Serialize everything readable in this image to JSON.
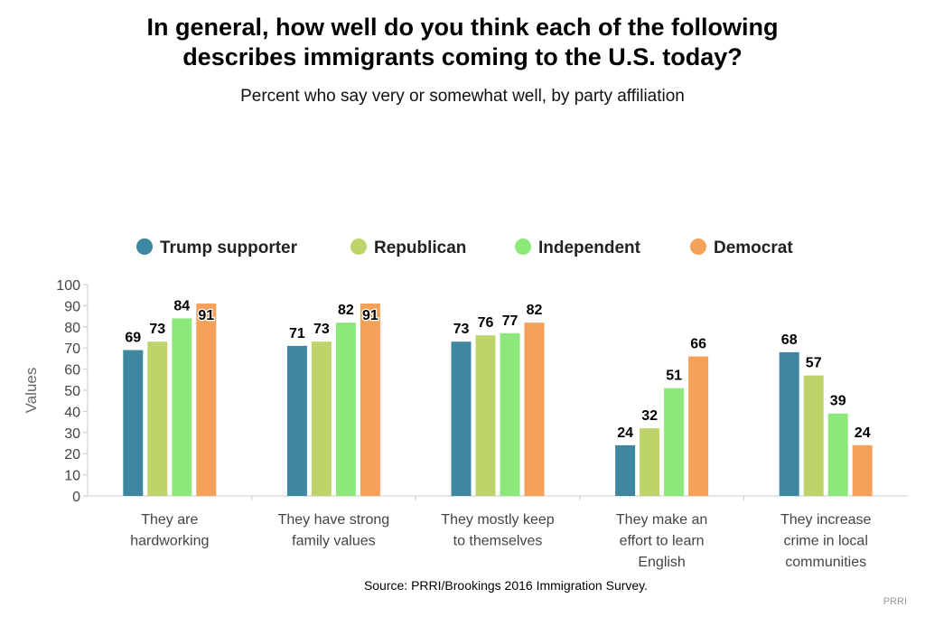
{
  "title_lines": [
    "In general, how well do you think each of the following",
    "describes immigrants coming to the U.S. today?"
  ],
  "subtitle": "Percent who say very or somewhat well, by party affiliation",
  "source": "Source: PRRI/Brookings 2016 Immigration Survey.",
  "credit": "PRRI",
  "chart_data": {
    "type": "bar",
    "title": "In general, how well do you think each of the following describes immigrants coming to the U.S. today?",
    "subtitle": "Percent who say very or somewhat well, by party affiliation",
    "ylabel": "Values",
    "xlabel": "",
    "ylim": [
      0,
      100
    ],
    "yticks": [
      0,
      10,
      20,
      30,
      40,
      50,
      60,
      70,
      80,
      90,
      100
    ],
    "grid": false,
    "legend_position": "top",
    "categories": [
      [
        "They are",
        "hardworking"
      ],
      [
        "They have strong",
        "family values"
      ],
      [
        "They mostly keep",
        "to themselves"
      ],
      [
        "They make an",
        "effort to learn",
        "English"
      ],
      [
        "They increase",
        "crime in local",
        "communities"
      ]
    ],
    "series": [
      {
        "name": "Trump supporter",
        "color": "#3f87a0",
        "values": [
          69,
          71,
          73,
          24,
          68
        ]
      },
      {
        "name": "Republican",
        "color": "#bcd46a",
        "values": [
          73,
          73,
          76,
          32,
          57
        ]
      },
      {
        "name": "Independent",
        "color": "#8ce87a",
        "values": [
          84,
          82,
          77,
          51,
          39
        ]
      },
      {
        "name": "Democrat",
        "color": "#f5a15a",
        "values": [
          91,
          91,
          82,
          66,
          24
        ]
      }
    ]
  }
}
